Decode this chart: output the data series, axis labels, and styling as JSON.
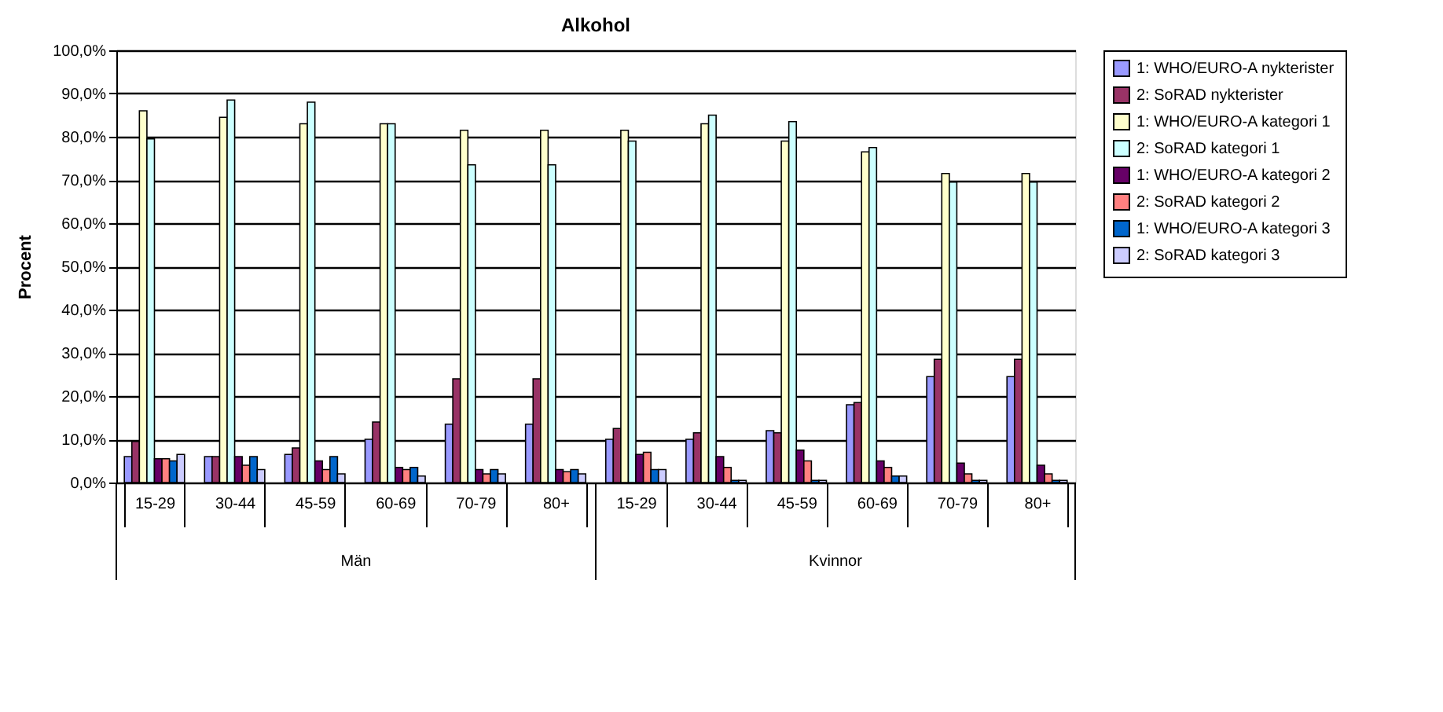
{
  "chart_data": {
    "type": "bar",
    "title": "Alkohol",
    "ylabel": "Procent",
    "categories": [
      "15-29",
      "30-44",
      "45-59",
      "60-69",
      "70-79",
      "80+",
      "15-29",
      "30-44",
      "45-59",
      "60-69",
      "70-79",
      "80+"
    ],
    "annotations": [
      "Män",
      "Kvinnor"
    ],
    "series": [
      {
        "name": "1: WHO/EURO-A nykterister",
        "color": "#9999ff",
        "values": [
          6,
          6,
          6.5,
          10,
          13.5,
          13.5,
          10,
          10,
          12,
          18,
          24.5,
          24.5
        ]
      },
      {
        "name": "2: SoRAD nykterister",
        "color": "#993366",
        "values": [
          9.5,
          6,
          8,
          14,
          24,
          24,
          12.5,
          11.5,
          11.5,
          18.5,
          28.5,
          28.5
        ]
      },
      {
        "name": "1: WHO/EURO-A kategori 1",
        "color": "#ffffcc",
        "values": [
          86,
          84.5,
          83,
          83,
          81.5,
          81.5,
          81.5,
          83,
          79,
          76.5,
          71.5,
          71.5
        ]
      },
      {
        "name": "2: SoRAD kategori 1",
        "color": "#ccffff",
        "values": [
          79.5,
          88.5,
          88,
          83,
          73.5,
          73.5,
          79,
          85,
          83.5,
          77.5,
          69.5,
          69.5
        ]
      },
      {
        "name": "1: WHO/EURO-A kategori 2",
        "color": "#660066",
        "values": [
          5.5,
          6,
          5,
          3.5,
          3,
          3,
          6.5,
          6,
          7.5,
          5,
          4.5,
          4
        ]
      },
      {
        "name": "2: SoRAD kategori 2",
        "color": "#ff8080",
        "values": [
          5.5,
          4,
          3,
          3,
          2,
          2.5,
          7,
          3.5,
          5,
          3.5,
          2,
          2
        ]
      },
      {
        "name": "1: WHO/EURO-A kategori 3",
        "color": "#0066cc",
        "values": [
          5,
          6,
          6,
          3.5,
          3,
          3,
          3,
          0.5,
          0.5,
          1.5,
          0.5,
          0.5
        ]
      },
      {
        "name": "2: SoRAD kategori 3",
        "color": "#ccccff",
        "values": [
          6.5,
          3,
          2,
          1.5,
          2,
          2,
          3,
          0.5,
          0.5,
          1.5,
          0.5,
          0.5
        ]
      }
    ],
    "ylim": [
      0,
      100
    ],
    "yticks": [
      {
        "value": 0,
        "label": "0,0%"
      },
      {
        "value": 10,
        "label": "10,0%"
      },
      {
        "value": 20,
        "label": "20,0%"
      },
      {
        "value": 30,
        "label": "30,0%"
      },
      {
        "value": 40,
        "label": "40,0%"
      },
      {
        "value": 50,
        "label": "50,0%"
      },
      {
        "value": 60,
        "label": "60,0%"
      },
      {
        "value": 70,
        "label": "70,0%"
      },
      {
        "value": 80,
        "label": "80,0%"
      },
      {
        "value": 90,
        "label": "90,0%"
      },
      {
        "value": 100,
        "label": "100,0%"
      }
    ],
    "grid": "y",
    "legend": "right"
  }
}
